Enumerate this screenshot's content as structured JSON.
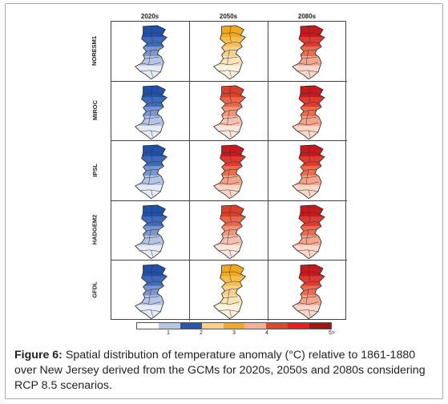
{
  "columns": [
    "2020s",
    "2050s",
    "2080s"
  ],
  "rows": [
    {
      "label": "NORESM1",
      "palettes": [
        "blue",
        "yellow",
        "red"
      ]
    },
    {
      "label": "MIROC",
      "palettes": [
        "blue",
        "orange",
        "red"
      ]
    },
    {
      "label": "IPSL",
      "palettes": [
        "blue",
        "red",
        "red"
      ]
    },
    {
      "label": "HADGEM2",
      "palettes": [
        "blue",
        "orange",
        "red"
      ]
    },
    {
      "label": "GFDL",
      "palettes": [
        "blue",
        "yellow",
        "red"
      ]
    }
  ],
  "palettes": {
    "blue": [
      "#2150a8",
      "#3f6ab8",
      "#7a96cf",
      "#b4c4e4",
      "#e6ebf6"
    ],
    "yellow": [
      "#f1a81c",
      "#f5bd52",
      "#f8d089",
      "#fbe3b8",
      "#fdf2df"
    ],
    "orange": [
      "#d9402a",
      "#e8674a",
      "#f0947a",
      "#f6c2b0",
      "#fbe6dd"
    ],
    "red": [
      "#c51a1f",
      "#de3a2f",
      "#ec6c4f",
      "#f4a48a",
      "#fad7c9"
    ]
  },
  "legend": {
    "colors": [
      "#ffffff",
      "#b7c6e6",
      "#2a57aa",
      "#f8d08a",
      "#f2a824",
      "#f4b09a",
      "#d9492c",
      "#e8201e",
      "#a01516"
    ],
    "ticks": [
      "1",
      "2",
      "3",
      "4",
      "5>"
    ]
  },
  "caption": {
    "label": "Figure 6:",
    "text": " Spatial distribution of temperature anomaly (°C) relative to 1861-1880 over New Jersey derived from the GCMs for 2020s, 2050s and 2080s considering RCP 8.5 scenarios."
  }
}
